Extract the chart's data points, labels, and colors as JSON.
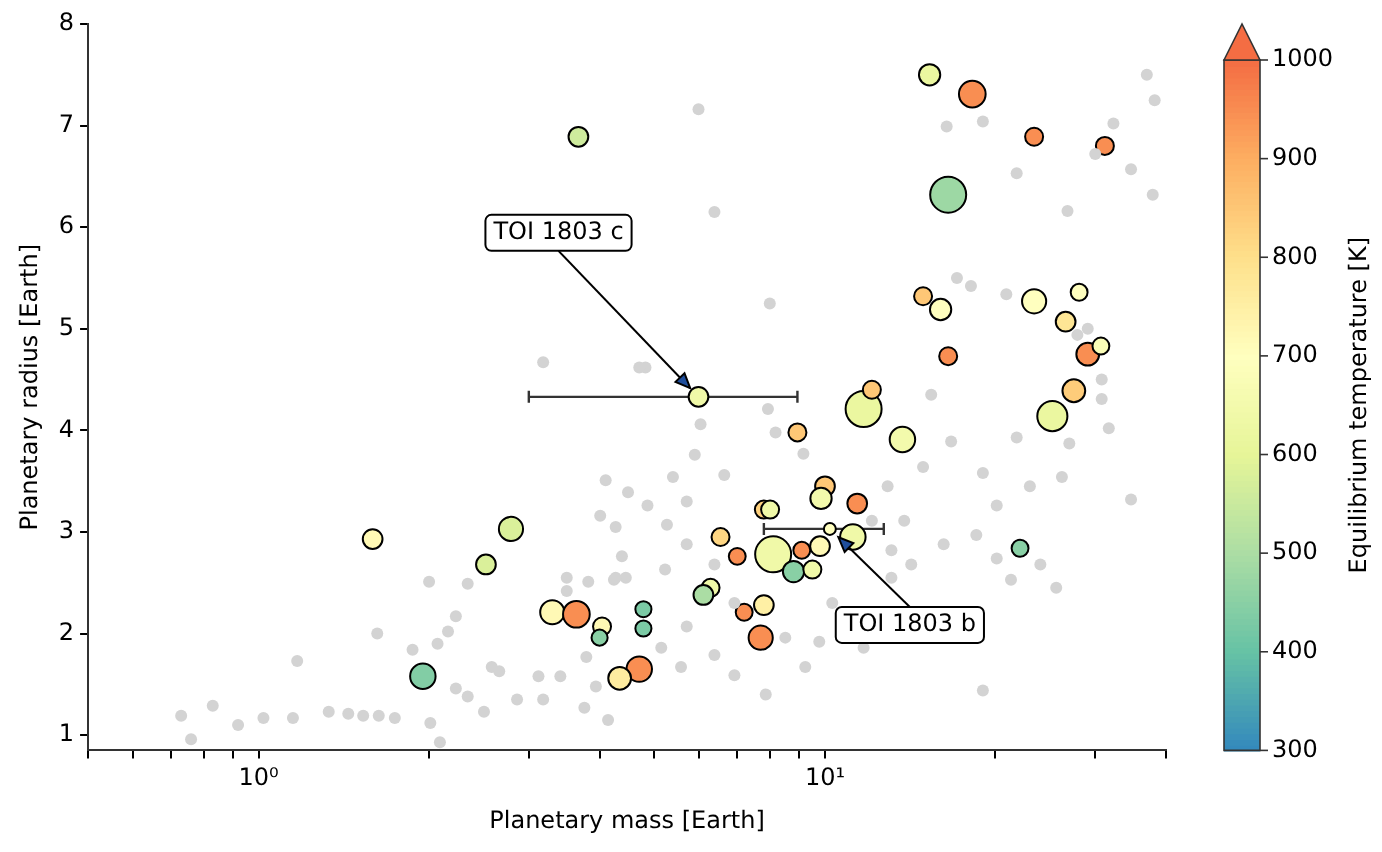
{
  "chart_data": {
    "type": "scatter",
    "xlabel": "Planetary mass [Earth]",
    "ylabel": "Planetary radius [Earth]",
    "clabel": "Equilibrium temperature [K]",
    "log": "x",
    "grid": false,
    "legend": false,
    "marker": "circle",
    "xlim": [
      0.5,
      40
    ],
    "xticks": [
      {
        "value": 0.5,
        "label": null
      },
      {
        "value": 0.6,
        "label": null
      },
      {
        "value": 0.7,
        "label": null
      },
      {
        "value": 0.8,
        "label": null
      },
      {
        "value": 0.9,
        "label": null
      },
      {
        "value": 1,
        "label": "10⁰"
      },
      {
        "value": 2,
        "label": null
      },
      {
        "value": 3,
        "label": null
      },
      {
        "value": 4,
        "label": null
      },
      {
        "value": 5,
        "label": null
      },
      {
        "value": 6,
        "label": null
      },
      {
        "value": 7,
        "label": null
      },
      {
        "value": 8,
        "label": null
      },
      {
        "value": 9,
        "label": null
      },
      {
        "value": 10,
        "label": "10¹"
      },
      {
        "value": 20,
        "label": null
      },
      {
        "value": 30,
        "label": null
      },
      {
        "value": 40,
        "label": null
      }
    ],
    "ylim": [
      0.85,
      8
    ],
    "yticks": [
      1,
      2,
      3,
      4,
      5,
      6,
      7,
      8
    ],
    "clim": [
      300,
      1000
    ],
    "cticks": [
      300,
      400,
      500,
      600,
      700,
      800,
      900,
      1000
    ],
    "annotations": [
      {
        "text": "TOI 1803 c",
        "x": 5.98,
        "y": 4.33
      },
      {
        "text": "TOI 1803 b",
        "x": 10.2,
        "y": 3.03
      }
    ],
    "series": [
      {
        "type": "scatter",
        "color": "#d3d3d3",
        "x": [
          0.73,
          0.76,
          0.83,
          0.92,
          1.02,
          1.15,
          1.17,
          1.33,
          1.44,
          1.53,
          1.63,
          1.74,
          1.62,
          1.87,
          2.0,
          2.07,
          2.16,
          2.23,
          2.34,
          2.23,
          2.34,
          2.5,
          2.58,
          2.66,
          2.86,
          3.12,
          3.18,
          3.41,
          3.5,
          3.82,
          3.5,
          3.79,
          4.14,
          4.1,
          4.01,
          4.27,
          4.38,
          4.49,
          4.24,
          4.45,
          3.76,
          3.94,
          2.01,
          2.09,
          6.03,
          5.89,
          8.18,
          7.93,
          9.16,
          6.64,
          5.39,
          5.7,
          4.86,
          5.26,
          5.7,
          6.38,
          5.22,
          4.27,
          6.92,
          5.7,
          5.14,
          6.38,
          5.57,
          6.92,
          7.86,
          9.23,
          8.51,
          9.77,
          11.7,
          10.3,
          13.1,
          14.2,
          16.2,
          16.7,
          20.1,
          19.0,
          23.0,
          26.2,
          30.8,
          31.7,
          34.7,
          21.8,
          27.0,
          18.5,
          20.1,
          21.3,
          25.6,
          24.0,
          14.9,
          12.9,
          12.1,
          13.8,
          15.4,
          19.0,
          13.1,
          5.98,
          6.38,
          7.99,
          4.82,
          16.4,
          19.0,
          21.8,
          26.8,
          30.0,
          32.3,
          34.7,
          37.0,
          38.2,
          37.9,
          17.1,
          18.1,
          20.9,
          27.9,
          29.1,
          30.8,
          3.18,
          4.7
        ],
        "values": [
          1.19,
          0.96,
          1.29,
          1.1,
          1.17,
          1.17,
          1.73,
          1.23,
          1.21,
          1.19,
          1.19,
          1.17,
          2.0,
          1.84,
          2.51,
          1.9,
          2.02,
          2.17,
          2.49,
          1.46,
          1.38,
          1.23,
          1.67,
          1.63,
          1.35,
          1.58,
          1.35,
          1.58,
          2.55,
          2.51,
          2.42,
          1.77,
          1.15,
          3.51,
          3.16,
          3.05,
          2.76,
          3.39,
          2.53,
          2.55,
          1.27,
          1.48,
          1.12,
          0.93,
          4.06,
          3.76,
          3.98,
          4.21,
          3.77,
          3.56,
          3.54,
          3.3,
          3.26,
          3.07,
          2.88,
          2.68,
          2.63,
          2.55,
          2.3,
          2.07,
          1.86,
          1.79,
          1.67,
          1.59,
          1.4,
          1.67,
          1.96,
          1.92,
          1.86,
          2.3,
          2.55,
          2.68,
          2.88,
          3.89,
          3.26,
          3.58,
          3.45,
          3.54,
          4.31,
          4.02,
          3.32,
          3.93,
          3.87,
          2.97,
          2.74,
          2.53,
          2.45,
          2.68,
          3.64,
          3.45,
          3.11,
          3.11,
          4.35,
          1.44,
          2.82,
          7.16,
          6.15,
          5.25,
          4.62,
          6.99,
          7.04,
          6.53,
          6.16,
          6.72,
          7.02,
          6.57,
          7.5,
          7.25,
          6.32,
          5.5,
          5.42,
          5.34,
          4.94,
          5.0,
          4.5,
          4.67,
          4.62
        ]
      },
      {
        "type": "bubble",
        "x": [
          3.67,
          15.3,
          18.2,
          23.4,
          31.2,
          16.5,
          14.9,
          16.0,
          23.4,
          28.1,
          26.6,
          29.1,
          30.7,
          16.5,
          25.2,
          27.5,
          11.7,
          12.1,
          13.7,
          8.94,
          10.0,
          9.84,
          11.4,
          7.8,
          8.0,
          11.2,
          9.8,
          6.54,
          7.0,
          8.1,
          9.1,
          8.8,
          9.5,
          6.28,
          6.1,
          4.78,
          4.78,
          7.8,
          7.2,
          7.7,
          4.7,
          4.34,
          22.1,
          1.59,
          2.79,
          2.52,
          1.95,
          3.3,
          3.64,
          4.04,
          4.0
        ],
        "values": [
          6.89,
          7.5,
          7.31,
          6.89,
          6.8,
          6.32,
          5.32,
          5.19,
          5.27,
          5.36,
          5.07,
          4.75,
          4.83,
          4.73,
          4.14,
          4.39,
          4.21,
          4.4,
          3.91,
          3.98,
          3.45,
          3.33,
          3.28,
          3.22,
          3.22,
          2.95,
          2.86,
          2.95,
          2.76,
          2.78,
          2.82,
          2.61,
          2.63,
          2.45,
          2.38,
          2.24,
          2.05,
          2.28,
          2.21,
          1.96,
          1.65,
          1.56,
          2.84,
          2.93,
          3.03,
          2.68,
          1.58,
          2.21,
          2.19,
          2.07,
          1.96
        ],
        "colors": [
          "#ceeb9d",
          "#ebf7a0",
          "#f98e52",
          "#f98e52",
          "#f98e52",
          "#9dd8a4",
          "#fec776",
          "#ffffbf",
          "#ffffbf",
          "#ffffbf",
          "#fee695",
          "#f98e52",
          "#fafdb7",
          "#f98e52",
          "#ebf7a0",
          "#fecc7a",
          "#ebf7a0",
          "#fec776",
          "#f3faac",
          "#fec776",
          "#fec776",
          "#f3faac",
          "#f98e52",
          "#fed17e",
          "#f0f9a8",
          "#f0f9a8",
          "#fff9b5",
          "#fed683",
          "#f98e52",
          "#f0f9a8",
          "#f98e52",
          "#89d0a5",
          "#f0f9a8",
          "#f0f9a8",
          "#abdda4",
          "#7bcaa5",
          "#7bcaa5",
          "#fff0a5",
          "#f98e52",
          "#f98e52",
          "#f98e52",
          "#feeca0",
          "#89d0a5",
          "#fff9b5",
          "#daf09a",
          "#daf09a",
          "#82cda5",
          "#fff9b5",
          "#f98e52",
          "#fff9b5",
          "#89d0a5"
        ],
        "sizes": [
          0.3,
          0.35,
          0.55,
          0.25,
          0.25,
          1,
          0.25,
          0.35,
          0.45,
          0.22,
          0.3,
          0.4,
          0.22,
          0.25,
          0.7,
          0.4,
          1,
          0.25,
          0.5,
          0.25,
          0.3,
          0.35,
          0.3,
          0.25,
          0.25,
          0.5,
          0.3,
          0.25,
          0.22,
          1,
          0.22,
          0.35,
          0.25,
          0.25,
          0.3,
          0.2,
          0.2,
          0.3,
          0.22,
          0.45,
          0.5,
          0.4,
          0.22,
          0.3,
          0.45,
          0.3,
          0.5,
          0.45,
          0.55,
          0.25,
          0.2
        ]
      },
      {
        "type": "bubble",
        "x": [
          5.98,
          10.2
        ],
        "values": [
          4.33,
          3.03
        ],
        "colors": [
          "#f0f9a8",
          "#ffffbf"
        ],
        "sizes": [
          0.3,
          0.11
        ],
        "xerrors": [
          [
            3.0,
            8.94
          ],
          [
            7.8,
            12.7
          ]
        ]
      }
    ]
  }
}
